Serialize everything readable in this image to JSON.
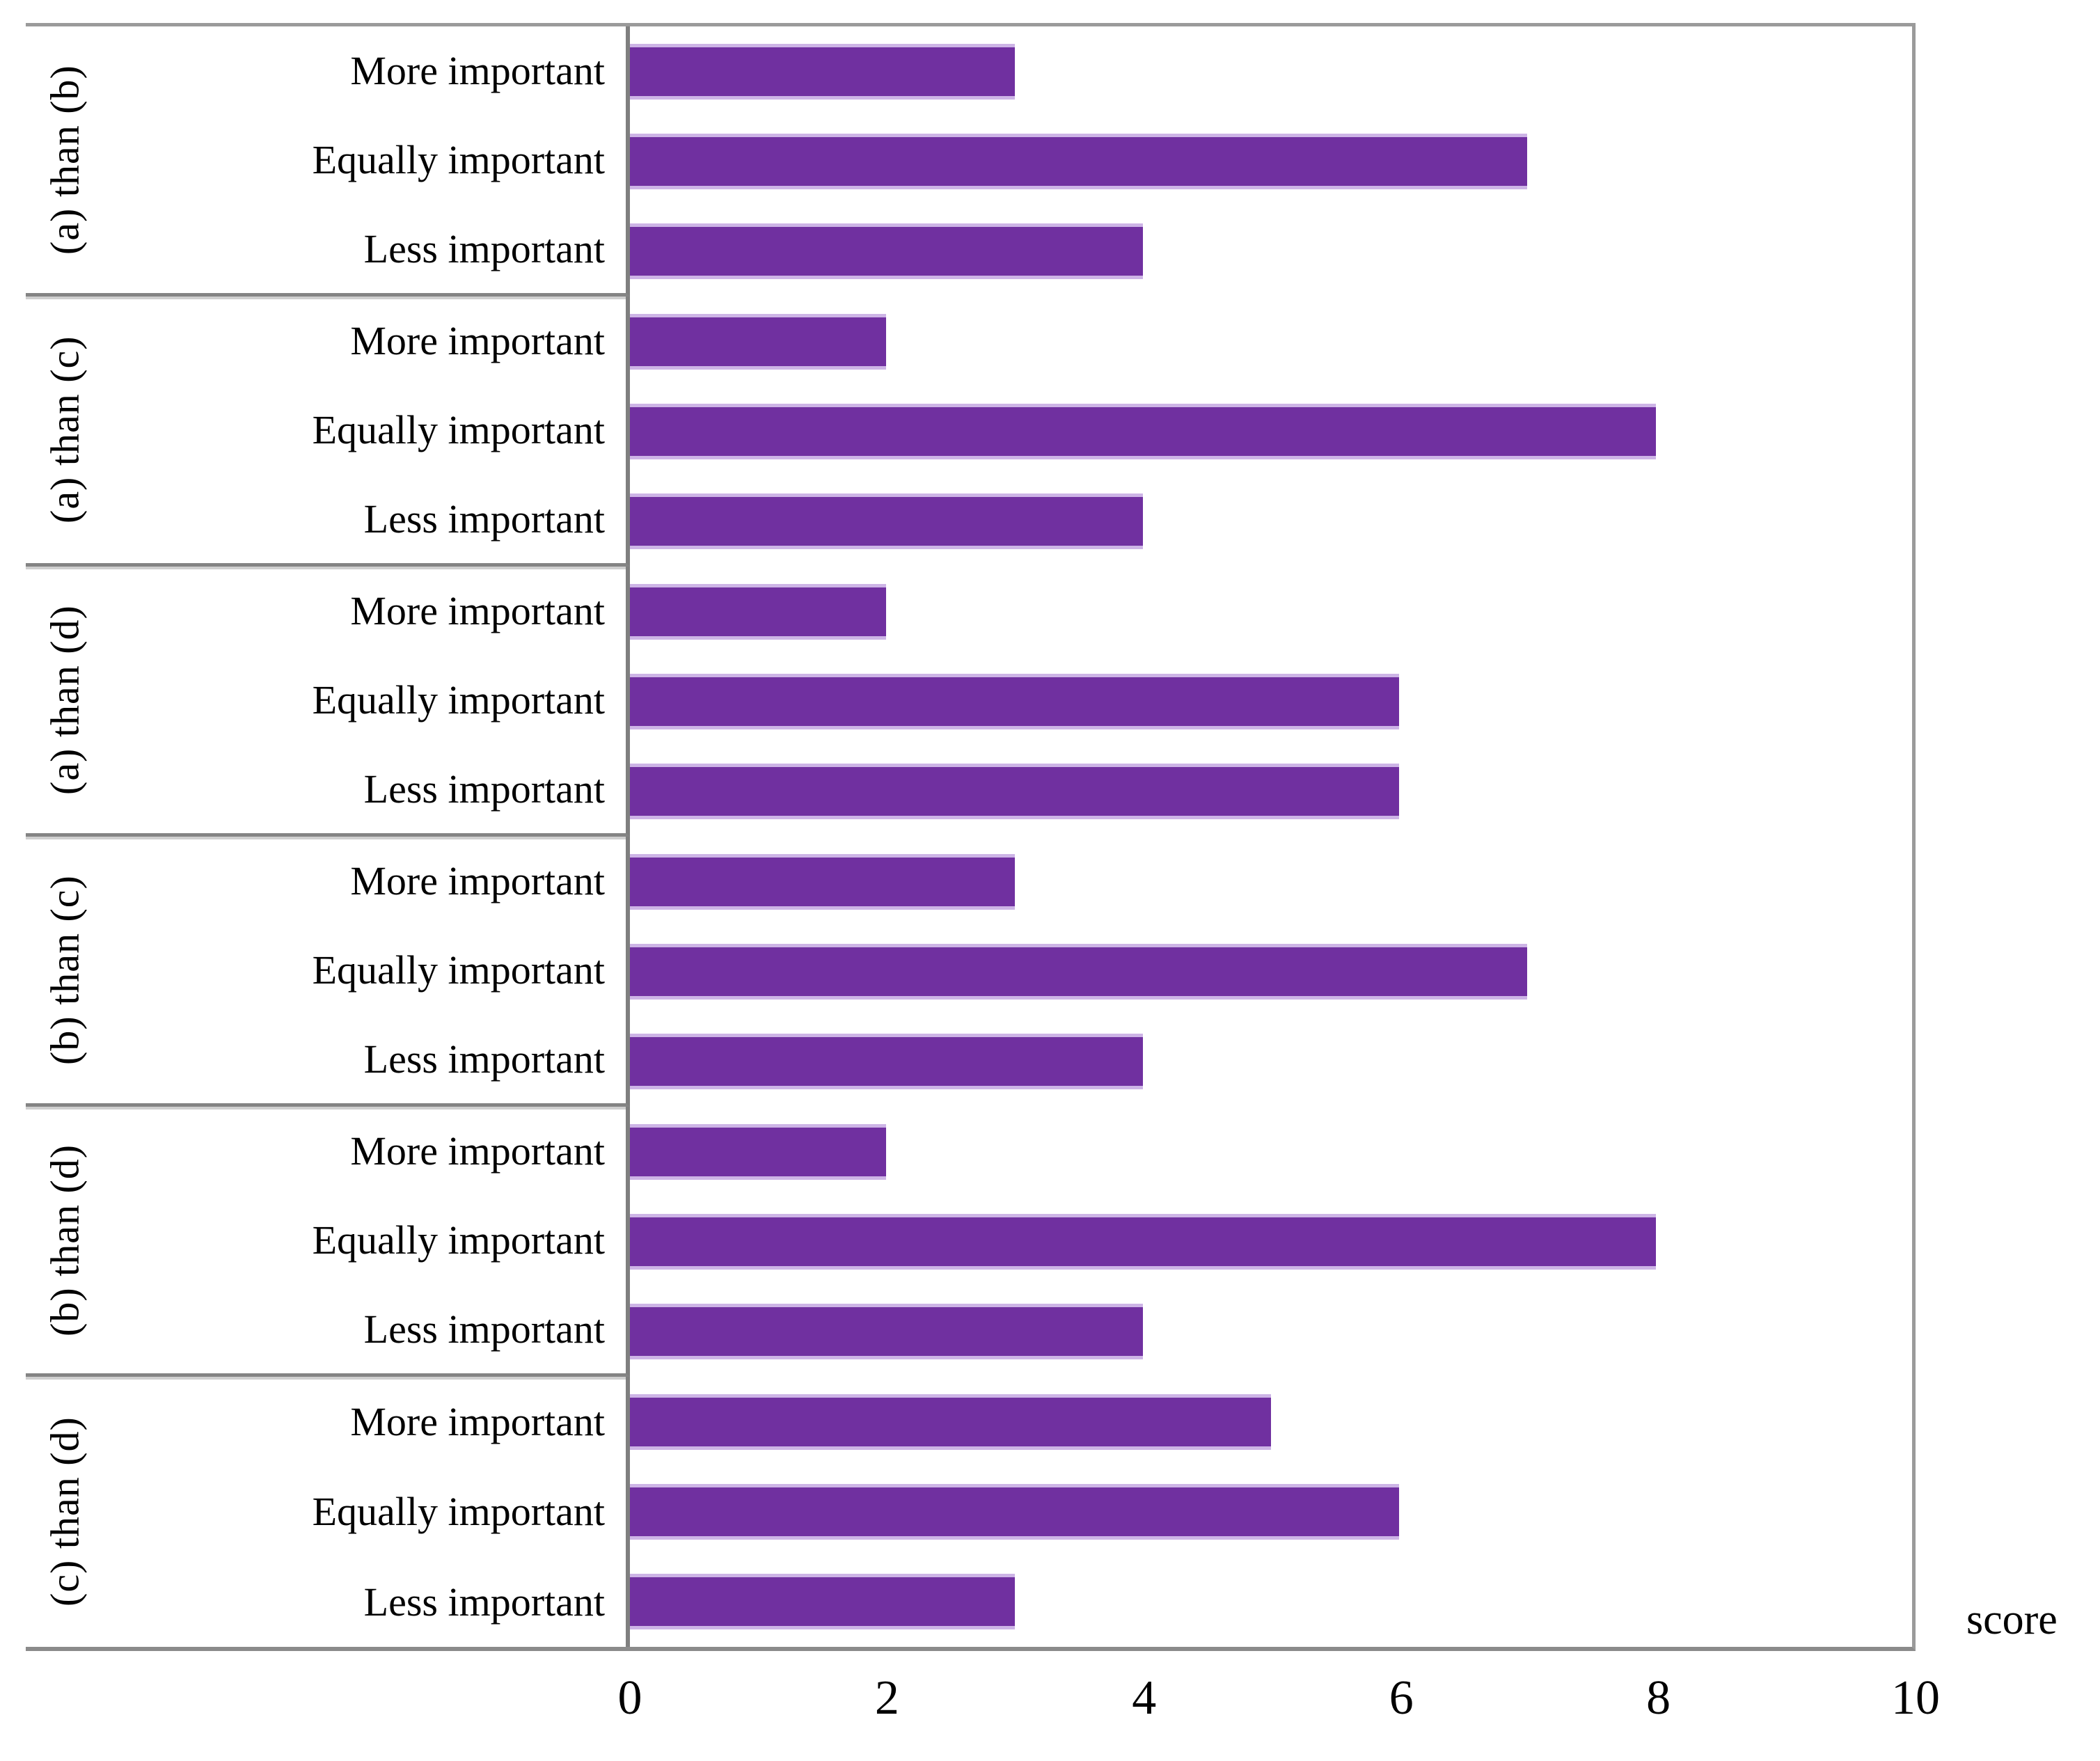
{
  "chart_data": {
    "type": "bar",
    "orientation": "horizontal",
    "title": "",
    "xlabel": "score",
    "ylabel": "",
    "xlim": [
      0,
      10
    ],
    "xticks": [
      "0",
      "2",
      "4",
      "6",
      "8",
      "10"
    ],
    "grid": false,
    "legend": false,
    "bar_color": "#7030A0",
    "bar_edge_color": "#CDB4E6",
    "frame_color": "#8b8b8b",
    "categories": [
      "More important",
      "Equally important",
      "Less important"
    ],
    "groups": [
      {
        "label": "(a) than (b)",
        "values": [
          3,
          7,
          4
        ]
      },
      {
        "label": "(a) than (c)",
        "values": [
          2,
          8,
          4
        ]
      },
      {
        "label": "(a) than (d)",
        "values": [
          2,
          6,
          6
        ]
      },
      {
        "label": "(b) than (c)",
        "values": [
          3,
          7,
          4
        ]
      },
      {
        "label": "(b) than (d)",
        "values": [
          2,
          8,
          4
        ]
      },
      {
        "label": "(c) than (d)",
        "values": [
          5,
          6,
          3
        ]
      }
    ]
  },
  "axis": {
    "score_label": "score"
  }
}
